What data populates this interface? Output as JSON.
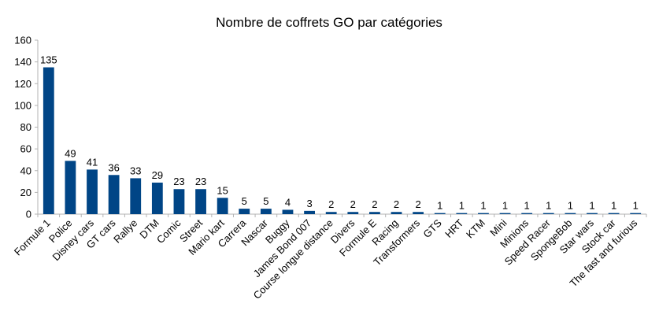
{
  "chart_data": {
    "type": "bar",
    "title": "Nombre de coffrets GO par catégories",
    "xlabel": "",
    "ylabel": "",
    "ylim": [
      0,
      160
    ],
    "yticks": [
      0,
      20,
      40,
      60,
      80,
      100,
      120,
      140,
      160
    ],
    "grid": false,
    "legend": "none",
    "bar_color": "#004586",
    "categories": [
      "Formule 1",
      "Police",
      "Disney cars",
      "GT cars",
      "Rallye",
      "DTM",
      "Comic",
      "Street",
      "Mario kart",
      "Carrera",
      "Nascar",
      "Buggy",
      "James Bond 007",
      "Course longue distance",
      "Divers",
      "Formule E",
      "Racing",
      "Transformers",
      "GTS",
      "HRT",
      "KTM",
      "Mini",
      "Minions",
      "Speed Racer",
      "SpongeBob",
      "Star wars",
      "Stock car",
      "The fast and furious"
    ],
    "values": [
      135,
      49,
      41,
      36,
      33,
      29,
      23,
      23,
      15,
      5,
      5,
      4,
      3,
      2,
      2,
      2,
      2,
      2,
      1,
      1,
      1,
      1,
      1,
      1,
      1,
      1,
      1,
      1
    ]
  }
}
